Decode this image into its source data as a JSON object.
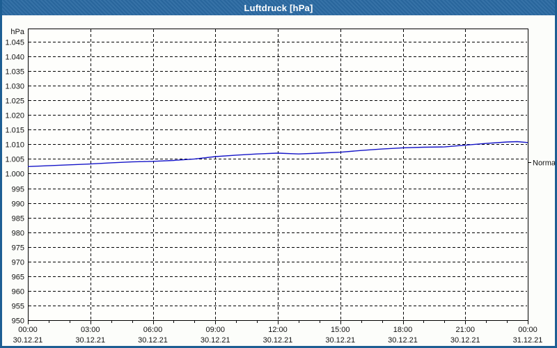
{
  "window": {
    "title": "Luftdruck [hPa]"
  },
  "colors": {
    "title_bar": "#2b6aa2",
    "window_border": "#1d5e93",
    "background": "#fcfdfa",
    "plot_background": "#fefefc",
    "grid": "#000000",
    "axis": "#000000",
    "line": "#1414c8",
    "title_text": "#ffffff",
    "label_text": "#111111"
  },
  "chart_data": {
    "type": "line",
    "title": "Luftdruck [hPa]",
    "unit_label": "hPa",
    "legend_position": "none",
    "grid": "dashed",
    "series": [
      {
        "name": "Luftdruck",
        "x_hours": [
          0,
          1,
          2,
          3,
          4,
          5,
          6,
          7,
          8,
          9,
          10,
          11,
          12,
          13,
          14,
          15,
          16,
          17,
          18,
          19,
          20,
          21,
          22,
          23,
          23.5,
          24
        ],
        "values": [
          1002.4,
          1002.7,
          1003.0,
          1003.3,
          1003.7,
          1004.0,
          1004.2,
          1004.5,
          1005.0,
          1005.8,
          1006.3,
          1006.7,
          1007.0,
          1006.7,
          1007.0,
          1007.3,
          1007.9,
          1008.4,
          1008.8,
          1009.0,
          1009.1,
          1009.7,
          1010.3,
          1010.8,
          1010.9,
          1010.6
        ]
      }
    ],
    "x_axis": {
      "range_hours": [
        0,
        24
      ],
      "tick_hours": [
        0,
        3,
        6,
        9,
        12,
        15,
        18,
        21,
        24
      ],
      "tick_times": [
        "00:00",
        "03:00",
        "06:00",
        "09:00",
        "12:00",
        "15:00",
        "18:00",
        "21:00",
        "00:00"
      ],
      "tick_dates": [
        "30.12.21",
        "30.12.21",
        "30.12.21",
        "30.12.21",
        "30.12.21",
        "30.12.21",
        "30.12.21",
        "30.12.21",
        "31.12.21"
      ],
      "minor_tick_interval_hours": 1
    },
    "y_axis": {
      "range": [
        950,
        1049.5
      ],
      "tick_values": [
        950,
        955,
        960,
        965,
        970,
        975,
        980,
        985,
        990,
        995,
        1000,
        1005,
        1010,
        1015,
        1020,
        1025,
        1030,
        1035,
        1040,
        1045
      ],
      "tick_labels": [
        "950",
        "955",
        "960",
        "965",
        "970",
        "975",
        "980",
        "985",
        "990",
        "995",
        "1.000",
        "1.005",
        "1.010",
        "1.015",
        "1.020",
        "1.025",
        "1.030",
        "1.035",
        "1.040",
        "1.045"
      ]
    },
    "normal_marker": {
      "label": "Normal",
      "value": 1004
    }
  }
}
